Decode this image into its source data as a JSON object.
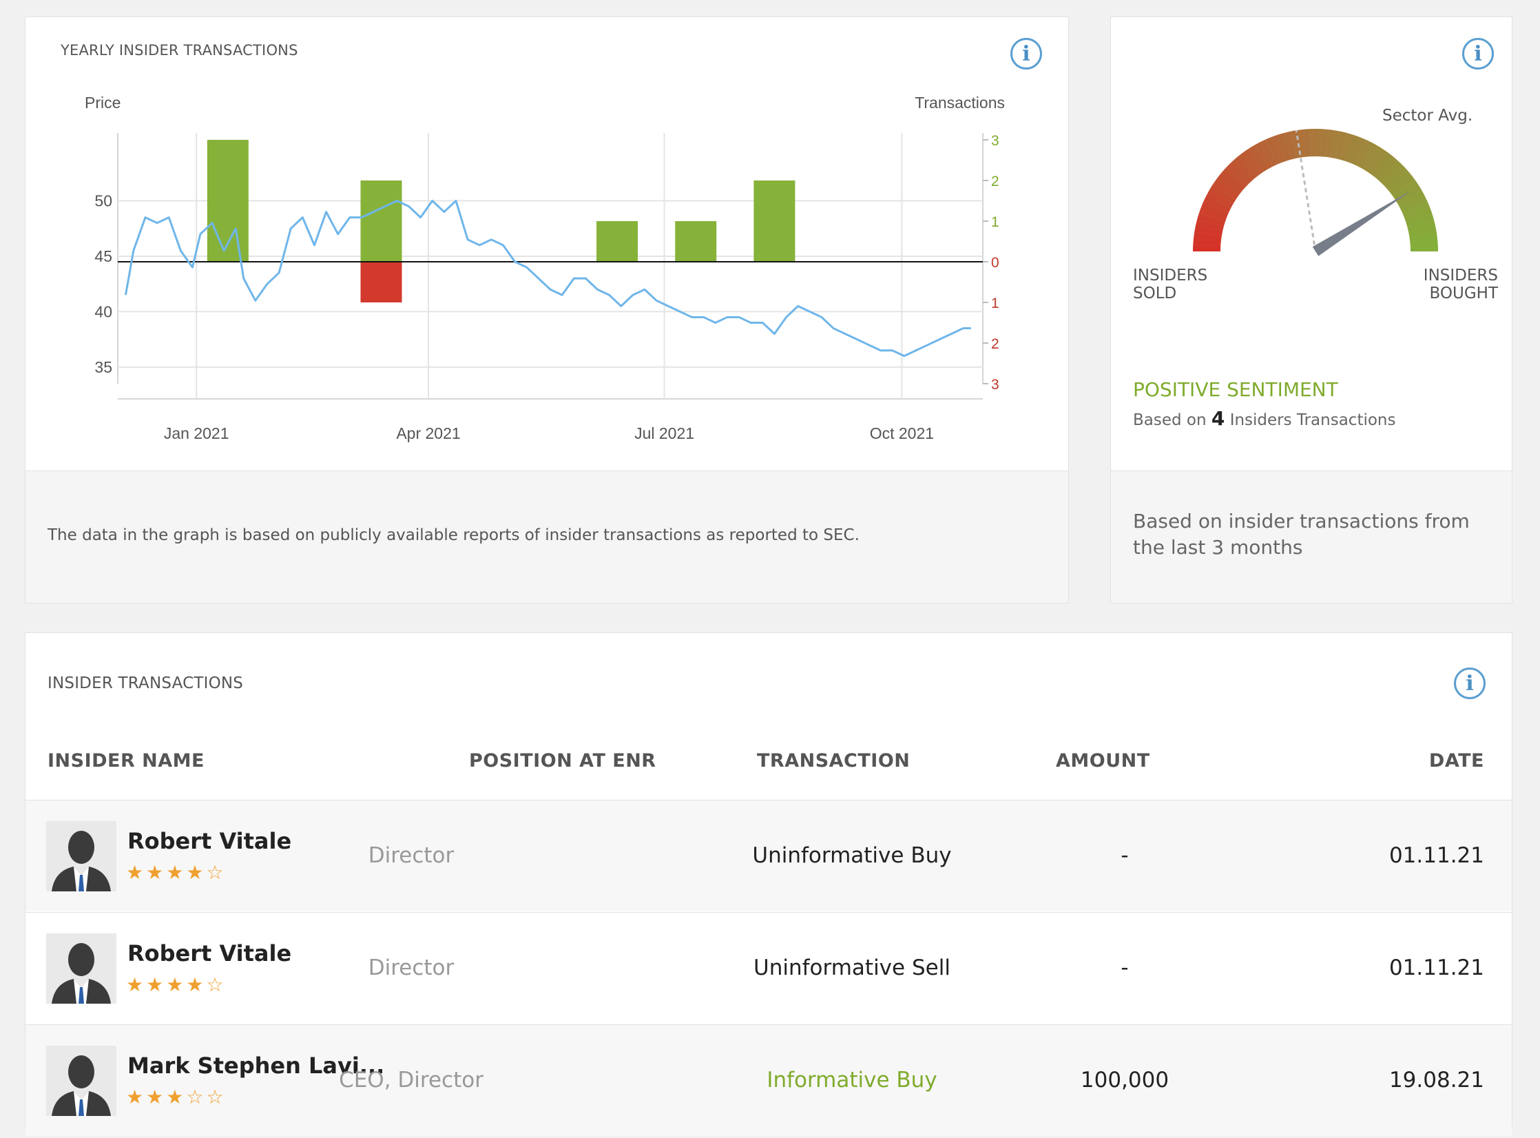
{
  "yearly_panel": {
    "title": "YEARLY INSIDER TRANSACTIONS",
    "footnote": "The data in the graph is based on publicly available reports of insider transactions as reported to SEC."
  },
  "chart_data": {
    "type": "bar+line",
    "ylabel_left": "Price",
    "ylabel_right": "Transactions",
    "left_ticks": [
      35,
      40,
      45,
      50
    ],
    "left_ylim": [
      33.5,
      55.5
    ],
    "right_ticks": [
      "3",
      "2",
      "1",
      "0",
      "1",
      "2",
      "3"
    ],
    "right_ylim": [
      -3,
      3
    ],
    "x_ticks": [
      "Jan 2021",
      "Apr 2021",
      "Jul 2021",
      "Oct 2021"
    ],
    "x_tick_pos": [
      1.0,
      3.95,
      6.95,
      9.97
    ],
    "xlim": [
      0,
      11
    ],
    "colors": {
      "buy": "#86b23a",
      "sell": "#d23a2d",
      "price": "#6fb6ea",
      "pos_label": "#7fab2c",
      "neg_label": "#c0392b"
    },
    "bars": [
      {
        "x": 1.4,
        "buy": 3,
        "sell": 0
      },
      {
        "x": 3.35,
        "buy": 2,
        "sell": 1
      },
      {
        "x": 6.35,
        "buy": 1,
        "sell": 0
      },
      {
        "x": 7.35,
        "buy": 1,
        "sell": 0
      },
      {
        "x": 8.35,
        "buy": 2,
        "sell": 0
      }
    ],
    "price": {
      "x": [
        0.1,
        0.2,
        0.35,
        0.5,
        0.65,
        0.8,
        0.95,
        1.05,
        1.2,
        1.35,
        1.5,
        1.6,
        1.75,
        1.9,
        2.05,
        2.2,
        2.35,
        2.5,
        2.65,
        2.8,
        2.95,
        3.1,
        3.25,
        3.4,
        3.55,
        3.7,
        3.85,
        4.0,
        4.15,
        4.3,
        4.45,
        4.6,
        4.75,
        4.9,
        5.05,
        5.2,
        5.35,
        5.5,
        5.65,
        5.8,
        5.95,
        6.1,
        6.25,
        6.4,
        6.55,
        6.7,
        6.85,
        7.0,
        7.15,
        7.3,
        7.45,
        7.6,
        7.75,
        7.9,
        8.05,
        8.2,
        8.35,
        8.5,
        8.65,
        8.8,
        8.95,
        9.1,
        9.25,
        9.4,
        9.55,
        9.7,
        9.85,
        10.0,
        10.15,
        10.3,
        10.45,
        10.6,
        10.75,
        10.85
      ],
      "values": [
        41.5,
        45.5,
        48.5,
        48.0,
        48.5,
        45.5,
        44.0,
        47.0,
        48.0,
        45.5,
        47.5,
        43.0,
        41.0,
        42.5,
        43.5,
        47.5,
        48.5,
        46.0,
        49.0,
        47.0,
        48.5,
        48.5,
        49.0,
        49.5,
        50.0,
        49.5,
        48.5,
        50.0,
        49.0,
        50.0,
        46.5,
        46.0,
        46.5,
        46.0,
        44.5,
        44.0,
        43.0,
        42.0,
        41.5,
        43.0,
        43.0,
        42.0,
        41.5,
        40.5,
        41.5,
        42.0,
        41.0,
        40.5,
        40.0,
        39.5,
        39.5,
        39.0,
        39.5,
        39.5,
        39.0,
        39.0,
        38.0,
        39.5,
        40.5,
        40.0,
        39.5,
        38.5,
        38.0,
        37.5,
        37.0,
        36.5,
        36.5,
        36.0,
        36.5,
        37.0,
        37.5,
        38.0,
        38.5,
        38.5
      ]
    }
  },
  "sentiment_panel": {
    "sector_avg_label": "Sector Avg.",
    "left_label_1": "INSIDERS",
    "left_label_2": "SOLD",
    "right_label_1": "INSIDERS",
    "right_label_2": "BOUGHT",
    "gauge_value": 0.82,
    "sector_avg_value": 0.45,
    "sentiment": "POSITIVE SENTIMENT",
    "based_prefix": "Based on",
    "based_count": "4",
    "based_suffix": "Insiders Transactions",
    "footnote": "Based on insider transactions from the last 3 months"
  },
  "transactions_panel": {
    "title": "INSIDER TRANSACTIONS",
    "headers": {
      "name": "INSIDER NAME",
      "position": "POSITION AT ENR",
      "transaction": "TRANSACTION",
      "amount": "AMOUNT",
      "date": "DATE"
    },
    "rows": [
      {
        "name": "Robert Vitale",
        "stars": 4,
        "position": "Director",
        "transaction": "Uninformative Buy",
        "amount": "-",
        "date": "01.11.21",
        "informative": false
      },
      {
        "name": "Robert Vitale",
        "stars": 4,
        "position": "Director",
        "transaction": "Uninformative Sell",
        "amount": "-",
        "date": "01.11.21",
        "informative": false
      },
      {
        "name": "Mark Stephen Lavi...",
        "stars": 3,
        "position": "CEO, Director",
        "transaction": "Informative Buy",
        "amount": "100,000",
        "date": "19.08.21",
        "informative": true
      }
    ]
  }
}
